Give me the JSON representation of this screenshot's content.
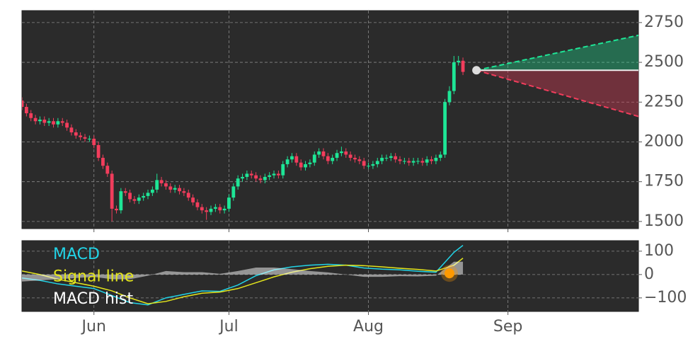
{
  "chart_data": [
    {
      "type": "candlestick",
      "x": [
        0,
        1,
        2,
        3,
        4,
        5,
        6,
        7,
        8,
        9,
        10,
        11,
        12,
        13,
        14,
        15,
        16,
        17,
        18,
        19,
        20,
        21,
        22,
        23,
        24,
        25,
        26,
        27,
        28,
        29,
        30,
        31,
        32,
        33,
        34,
        35,
        36,
        37,
        38,
        39,
        40,
        41,
        42,
        43,
        44,
        45,
        46,
        47,
        48,
        49,
        50,
        51,
        52,
        53,
        54,
        55,
        56,
        57,
        58,
        59,
        60,
        61,
        62,
        63,
        64,
        65,
        66,
        67,
        68,
        69,
        70,
        71,
        72,
        73,
        74,
        75,
        76,
        77,
        78,
        79,
        80,
        81,
        82,
        83,
        84,
        85,
        86,
        87,
        88,
        89,
        90,
        91,
        92,
        93,
        94,
        95,
        96,
        97,
        98
      ],
      "open": [
        2260,
        2220,
        2180,
        2150,
        2130,
        2140,
        2120,
        2130,
        2110,
        2130,
        2120,
        2090,
        2060,
        2040,
        2030,
        2020,
        2020,
        1980,
        1900,
        1850,
        1800,
        1580,
        1570,
        1690,
        1680,
        1640,
        1630,
        1650,
        1660,
        1680,
        1700,
        1760,
        1740,
        1720,
        1700,
        1710,
        1690,
        1680,
        1650,
        1620,
        1590,
        1570,
        1560,
        1580,
        1590,
        1570,
        1580,
        1650,
        1720,
        1770,
        1780,
        1800,
        1790,
        1770,
        1760,
        1780,
        1790,
        1800,
        1790,
        1860,
        1890,
        1910,
        1870,
        1840,
        1860,
        1870,
        1920,
        1940,
        1910,
        1880,
        1900,
        1930,
        1940,
        1920,
        1900,
        1890,
        1880,
        1850,
        1850,
        1860,
        1880,
        1900,
        1900,
        1910,
        1890,
        1880,
        1880,
        1870,
        1880,
        1880,
        1870,
        1890,
        1880,
        1900,
        1920,
        2250,
        2320,
        2500,
        2510
      ],
      "high": [
        2280,
        2240,
        2200,
        2170,
        2160,
        2160,
        2150,
        2150,
        2150,
        2150,
        2140,
        2110,
        2080,
        2060,
        2050,
        2040,
        2040,
        2000,
        1920,
        1870,
        1820,
        1600,
        1710,
        1710,
        1700,
        1660,
        1670,
        1680,
        1700,
        1720,
        1800,
        1780,
        1760,
        1740,
        1730,
        1730,
        1710,
        1700,
        1670,
        1640,
        1610,
        1590,
        1600,
        1610,
        1610,
        1600,
        1670,
        1740,
        1790,
        1800,
        1820,
        1820,
        1810,
        1790,
        1800,
        1810,
        1820,
        1820,
        1880,
        1910,
        1930,
        1930,
        1890,
        1880,
        1890,
        1940,
        1960,
        1960,
        1930,
        1920,
        1950,
        1970,
        1960,
        1940,
        1920,
        1910,
        1900,
        1870,
        1880,
        1900,
        1920,
        1920,
        1930,
        1930,
        1910,
        1900,
        1900,
        1900,
        1900,
        1900,
        1910,
        1910,
        1920,
        1940,
        2270,
        2350,
        2540,
        2540,
        2530
      ],
      "low": [
        2200,
        2160,
        2130,
        2110,
        2110,
        2100,
        2100,
        2090,
        2090,
        2100,
        2070,
        2040,
        2020,
        2010,
        2000,
        2000,
        1960,
        1880,
        1830,
        1780,
        1500,
        1550,
        1550,
        1660,
        1620,
        1610,
        1610,
        1630,
        1640,
        1660,
        1680,
        1720,
        1700,
        1680,
        1680,
        1670,
        1660,
        1630,
        1600,
        1570,
        1550,
        1510,
        1540,
        1560,
        1550,
        1550,
        1560,
        1630,
        1700,
        1750,
        1760,
        1770,
        1750,
        1740,
        1740,
        1760,
        1770,
        1770,
        1770,
        1840,
        1870,
        1850,
        1820,
        1820,
        1840,
        1850,
        1900,
        1890,
        1860,
        1860,
        1880,
        1910,
        1900,
        1880,
        1870,
        1860,
        1830,
        1830,
        1830,
        1840,
        1860,
        1880,
        1880,
        1870,
        1860,
        1860,
        1850,
        1850,
        1860,
        1850,
        1850,
        1860,
        1860,
        1880,
        1900,
        2230,
        2300,
        2480,
        2420
      ],
      "close": [
        2220,
        2180,
        2150,
        2130,
        2140,
        2120,
        2130,
        2110,
        2130,
        2120,
        2090,
        2060,
        2040,
        2030,
        2020,
        2020,
        1980,
        1900,
        1850,
        1800,
        1580,
        1570,
        1690,
        1680,
        1640,
        1630,
        1650,
        1660,
        1680,
        1700,
        1760,
        1740,
        1720,
        1700,
        1710,
        1690,
        1680,
        1650,
        1620,
        1590,
        1570,
        1560,
        1580,
        1590,
        1570,
        1580,
        1650,
        1720,
        1770,
        1780,
        1800,
        1790,
        1770,
        1760,
        1780,
        1790,
        1800,
        1790,
        1860,
        1890,
        1910,
        1870,
        1840,
        1860,
        1870,
        1920,
        1940,
        1910,
        1880,
        1900,
        1930,
        1940,
        1920,
        1900,
        1890,
        1880,
        1850,
        1850,
        1860,
        1880,
        1900,
        1900,
        1910,
        1890,
        1880,
        1880,
        1870,
        1880,
        1880,
        1870,
        1890,
        1880,
        1900,
        1920,
        2250,
        2320,
        2500,
        2510,
        2440
      ],
      "up_color": "#1ee596",
      "down_color": "#f23d5c",
      "forecast": {
        "x": [
          101,
          137
        ],
        "mid": [
          2450,
          2450
        ],
        "upper": [
          2450,
          2670
        ],
        "lower": [
          2450,
          2160
        ],
        "up_color": "#1ee596",
        "down_color": "#f23d5c",
        "mid_color": "#eeeeee"
      },
      "xlim": [
        0,
        137
      ],
      "ylim": [
        1455,
        2825
      ],
      "yticks": [
        1500,
        1750,
        2000,
        2250,
        2500,
        2750
      ],
      "grid": true
    },
    {
      "type": "line",
      "x": [
        0,
        4,
        8,
        12,
        16,
        20,
        24,
        28,
        32,
        36,
        40,
        44,
        48,
        52,
        56,
        60,
        64,
        68,
        72,
        76,
        80,
        84,
        88,
        92,
        96,
        98
      ],
      "series": [
        {
          "name": "MACD",
          "color": "#22d3e6",
          "values": [
            -15,
            -25,
            -40,
            -50,
            -60,
            -90,
            -120,
            -130,
            -100,
            -85,
            -70,
            -72,
            -45,
            -5,
            20,
            33,
            40,
            44,
            40,
            28,
            23,
            20,
            14,
            10,
            95,
            125
          ]
        },
        {
          "name": "Signal line",
          "color": "#e4e61c",
          "values": [
            15,
            0,
            -20,
            -35,
            -50,
            -70,
            -100,
            -125,
            -115,
            -95,
            -80,
            -75,
            -60,
            -35,
            -10,
            10,
            25,
            35,
            40,
            38,
            33,
            27,
            22,
            15,
            40,
            70
          ]
        },
        {
          "name": "MACD hist",
          "color": "#ffffff",
          "kind": "area",
          "values": [
            -30,
            -25,
            -20,
            -15,
            -10,
            -20,
            -20,
            -5,
            15,
            10,
            10,
            3,
            15,
            30,
            30,
            23,
            15,
            9,
            0,
            -10,
            -10,
            -7,
            -8,
            -5,
            55,
            55
          ]
        }
      ],
      "crossover": {
        "x": 95,
        "value": 5,
        "color": "#ff9900"
      },
      "legend": "upper left",
      "xlim": [
        0,
        137
      ],
      "xticks": [
        {
          "value": 16,
          "label": "Jun"
        },
        {
          "value": 46,
          "label": "Jul"
        },
        {
          "value": 77,
          "label": "Aug"
        },
        {
          "value": 108,
          "label": "Sep"
        }
      ],
      "ylim": [
        -158,
        145
      ],
      "yticks": [
        100,
        0,
        {
          "value": -100,
          "label": "−100"
        }
      ],
      "grid": true
    }
  ]
}
